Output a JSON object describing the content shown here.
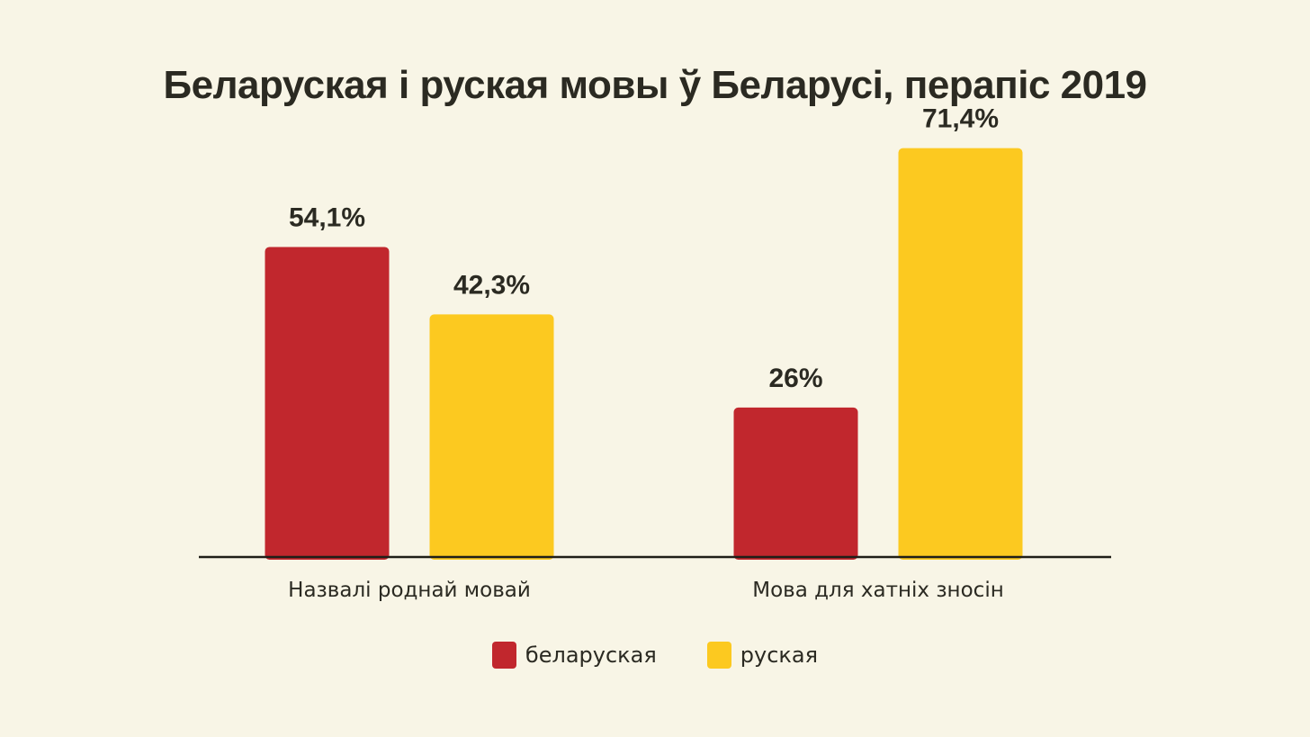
{
  "chart_data": {
    "type": "bar",
    "title": "Беларуская і руская мовы ў Беларусі, перапіс 2019",
    "categories": [
      "Назвалі роднай мовай",
      "Мова для хатніх зносін"
    ],
    "series": [
      {
        "name": "беларуская",
        "color": "#c1272d",
        "values": [
          54.1,
          26
        ],
        "labels": [
          "54,1%",
          "26%"
        ]
      },
      {
        "name": "руская",
        "color": "#fcc920",
        "values": [
          42.3,
          71.4
        ],
        "labels": [
          "42,3%",
          "71,4%"
        ]
      }
    ],
    "xlabel": "",
    "ylabel": "",
    "ylim": [
      0,
      80
    ],
    "grid": false,
    "legend_position": "bottom-center"
  }
}
